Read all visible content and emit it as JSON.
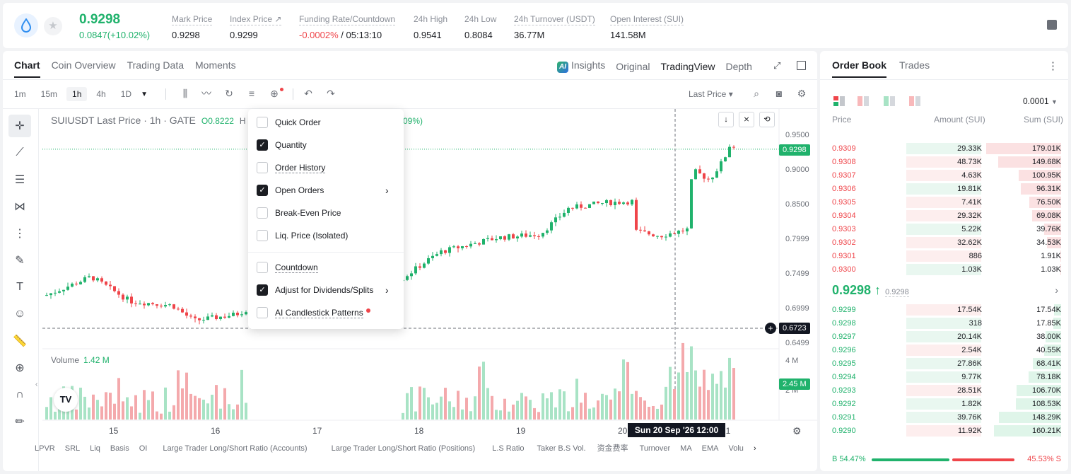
{
  "header": {
    "symbol_icon": "sui-drop-icon",
    "last_price": "0.9298",
    "change": "0.0847(+10.02%)",
    "stats": [
      {
        "label": "Mark Price",
        "value": "0.9298"
      },
      {
        "label": "Index Price ↗",
        "value": "0.9299"
      },
      {
        "label": "Funding Rate/Countdown",
        "value_neg": "-0.0002%",
        "value": " / 05:13:10"
      },
      {
        "label": "24h High",
        "value": "0.9541"
      },
      {
        "label": "24h Low",
        "value": "0.8084"
      },
      {
        "label": "24h Turnover (USDT)",
        "value": "36.77M"
      },
      {
        "label": "Open Interest (SUI)",
        "value": "141.58M"
      }
    ]
  },
  "chart_panel": {
    "tabs": [
      "Chart",
      "Coin Overview",
      "Trading Data",
      "Moments"
    ],
    "view_tabs": {
      "ai_badge": "AI",
      "insights": "Insights",
      "original": "Original",
      "tradingview": "TradingView",
      "depth": "Depth"
    },
    "timeframes": [
      "1m",
      "15m",
      "1h",
      "4h",
      "1D"
    ],
    "price_source": "Last Price ▾",
    "symbol_line": "SUIUSDT Last Price · 1h · GATE",
    "ohlc_open": "O0.8222",
    "ohlc_h_prefix": "H",
    "change_pct": "09%)",
    "price_axis": [
      "0.9500",
      "0.9000",
      "0.8500",
      "0.7999",
      "0.7499",
      "0.6999",
      "0.6499"
    ],
    "current_price_tag": "0.9298",
    "crosshair_price_tag": "0.6723",
    "volume_label": "Volume",
    "volume_value": "1.42 M",
    "volume_axis": [
      "4 M",
      "2 M"
    ],
    "volume_tag": "2.45 M",
    "x_labels": [
      "15",
      "16",
      "17",
      "18",
      "19",
      "20",
      "21"
    ],
    "crosshair_time": "Sun 20 Sep '26    12:00",
    "tv_logo": "TV",
    "bottom_indicators": [
      "LPVR",
      "SRL",
      "Liq",
      "Basis",
      "OI",
      "Large Trader Long/Short Ratio (Accounts)",
      "Large Trader Long/Short Ratio (Positions)",
      "L.S Ratio",
      "Taker B.S Vol.",
      "资金费率",
      "Turnover",
      "MA",
      "EMA",
      "Volu"
    ]
  },
  "settings_menu": {
    "items": [
      {
        "label": "Quick Order",
        "checked": false
      },
      {
        "label": "Quantity",
        "checked": true
      },
      {
        "label": "Order History",
        "checked": false
      },
      {
        "label": "Open Orders",
        "checked": true,
        "submenu": true
      },
      {
        "label": "Break-Even Price",
        "checked": false
      },
      {
        "label": "Liq. Price (Isolated)",
        "checked": false
      },
      {
        "label": "Countdown",
        "checked": false
      },
      {
        "label": "Adjust for Dividends/Splits",
        "checked": true,
        "submenu": true
      },
      {
        "label": "AI Candlestick Patterns",
        "checked": false,
        "new_dot": true
      }
    ]
  },
  "order_book": {
    "tabs": [
      "Order Book",
      "Trades"
    ],
    "precision": "0.0001",
    "headers": {
      "price": "Price",
      "amount": "Amount (SUI)",
      "sum": "Sum (SUI)"
    },
    "asks": [
      {
        "price": "0.9309",
        "amount": "29.33K",
        "sum": "179.01K"
      },
      {
        "price": "0.9308",
        "amount": "48.73K",
        "sum": "149.68K"
      },
      {
        "price": "0.9307",
        "amount": "4.63K",
        "sum": "100.95K"
      },
      {
        "price": "0.9306",
        "amount": "19.81K",
        "sum": "96.31K"
      },
      {
        "price": "0.9305",
        "amount": "7.41K",
        "sum": "76.50K"
      },
      {
        "price": "0.9304",
        "amount": "29.32K",
        "sum": "69.08K"
      },
      {
        "price": "0.9303",
        "amount": "5.22K",
        "sum": "39.76K"
      },
      {
        "price": "0.9302",
        "amount": "32.62K",
        "sum": "34.53K"
      },
      {
        "price": "0.9301",
        "amount": "886",
        "sum": "1.91K"
      },
      {
        "price": "0.9300",
        "amount": "1.03K",
        "sum": "1.03K"
      }
    ],
    "mid_price": "0.9298 ↑",
    "mark_price": "0.9298",
    "bids": [
      {
        "price": "0.9299",
        "amount": "17.54K",
        "sum": "17.54K"
      },
      {
        "price": "0.9298",
        "amount": "318",
        "sum": "17.85K"
      },
      {
        "price": "0.9297",
        "amount": "20.14K",
        "sum": "38.00K"
      },
      {
        "price": "0.9296",
        "amount": "2.54K",
        "sum": "40.55K"
      },
      {
        "price": "0.9295",
        "amount": "27.86K",
        "sum": "68.41K"
      },
      {
        "price": "0.9294",
        "amount": "9.77K",
        "sum": "78.18K"
      },
      {
        "price": "0.9293",
        "amount": "28.51K",
        "sum": "106.70K"
      },
      {
        "price": "0.9292",
        "amount": "1.82K",
        "sum": "108.53K"
      },
      {
        "price": "0.9291",
        "amount": "39.76K",
        "sum": "148.29K"
      },
      {
        "price": "0.9290",
        "amount": "11.92K",
        "sum": "160.21K"
      }
    ],
    "buy_ratio": "B 54.47%",
    "sell_ratio": "45.53% S",
    "buy_ratio_value": 0.5447
  },
  "colors": {
    "up": "#20b26c",
    "down": "#ef454a",
    "up_light": "#e9f7f0",
    "down_light": "#fdeeee"
  }
}
